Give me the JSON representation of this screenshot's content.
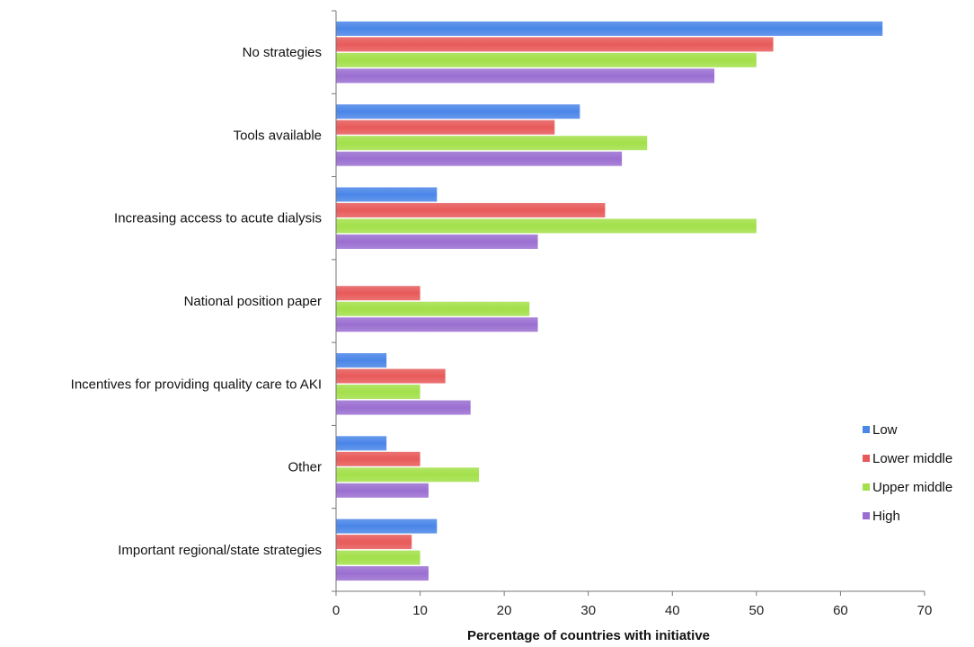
{
  "chart_data": {
    "type": "bar",
    "orientation": "horizontal",
    "title": "",
    "xlabel": "Percentage of countries with initiative",
    "ylabel": "",
    "xlim": [
      0,
      70
    ],
    "xticks": [
      0,
      10,
      20,
      30,
      40,
      50,
      60,
      70
    ],
    "grid": false,
    "legend_position": "right",
    "categories": [
      "No strategies",
      "Tools available",
      "Increasing access to acute dialysis",
      "National position paper",
      "Incentives for providing quality care to AKI",
      "Other",
      "Important regional/state strategies"
    ],
    "series": [
      {
        "name": "Low",
        "color": "#4a86e8",
        "values": [
          65,
          29,
          12,
          0,
          6,
          6,
          12
        ]
      },
      {
        "name": "Lower middle",
        "color": "#e85a5a",
        "values": [
          52,
          26,
          32,
          10,
          13,
          10,
          9
        ]
      },
      {
        "name": "Upper middle",
        "color": "#a3e04a",
        "values": [
          50,
          37,
          50,
          23,
          10,
          17,
          10
        ]
      },
      {
        "name": "High",
        "color": "#9b6fd1",
        "values": [
          45,
          34,
          24,
          24,
          16,
          11,
          11
        ]
      }
    ]
  }
}
